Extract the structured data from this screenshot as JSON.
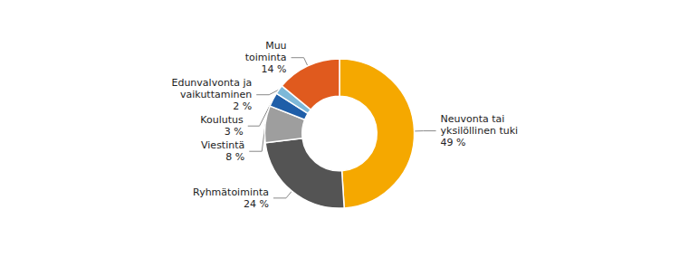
{
  "chart_data": {
    "type": "pie",
    "categories": [
      "Neuvonta tai\nyksilöllinen tuki",
      "Ryhmätoiminta",
      "Viestintä",
      "Koulutus",
      "Edunvalvonta ja\nvaikuttaminen",
      "Muu\ntoiminta"
    ],
    "values": [
      49,
      24,
      8,
      3,
      2,
      14
    ],
    "value_labels": [
      "49 %",
      "24 %",
      "8 %",
      "3 %",
      "2 %",
      "14 %"
    ],
    "colors": [
      "#F5A800",
      "#545454",
      "#9E9E9E",
      "#1F5EA8",
      "#7DB8D8",
      "#E05A1E"
    ],
    "data_labels": true
  }
}
